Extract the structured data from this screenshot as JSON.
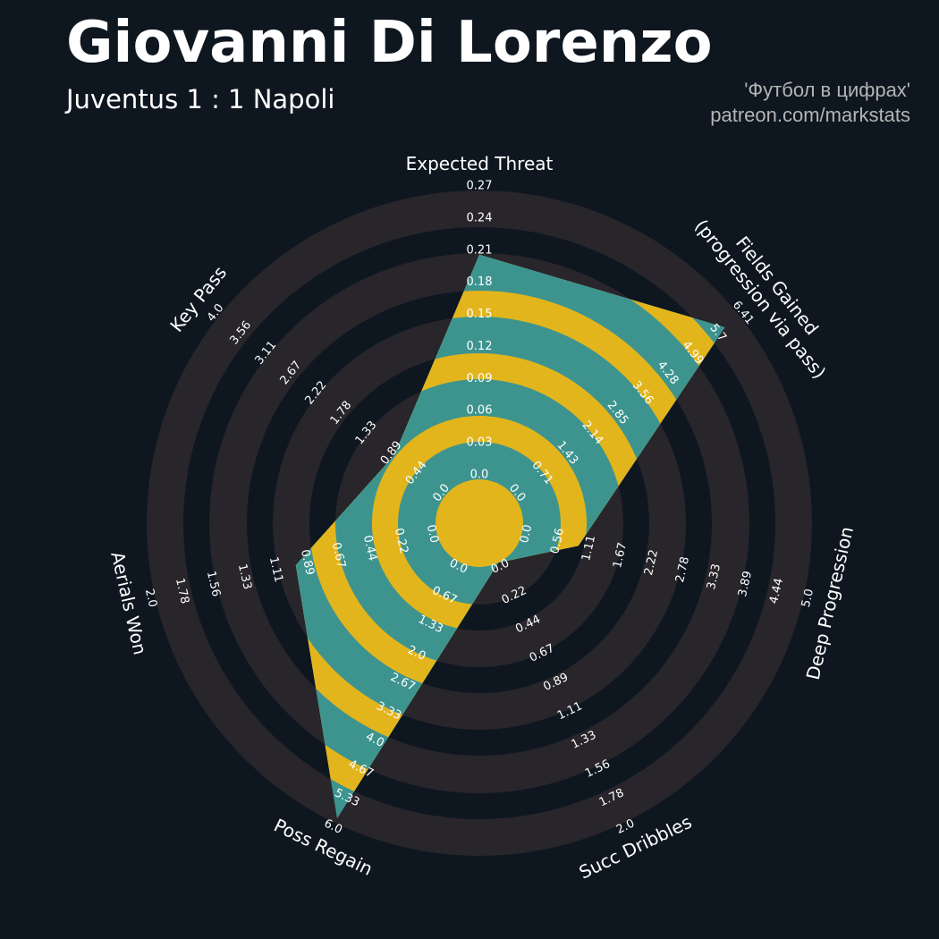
{
  "header": {
    "title": "Giovanni Di Lorenzo",
    "subtitle": "Juventus 1 : 1 Napoli",
    "credit_line1": "'Футбол в цифрах'",
    "credit_line2": "patreon.com/markstats"
  },
  "colors": {
    "background": "#0e1720",
    "rings": "#28252b",
    "polygon": "#3d948f",
    "polygon_rings": "#e3b51c",
    "text": "#ffffff"
  },
  "chart_data": {
    "type": "radar",
    "params": [
      {
        "name": "Expected Threat",
        "min": 0.0,
        "max": 0.27,
        "value": 0.21,
        "ticks": [
          "0.0",
          "0.03",
          "0.06",
          "0.09",
          "0.12",
          "0.15",
          "0.18",
          "0.21",
          "0.24",
          "0.27"
        ]
      },
      {
        "name": "Fields Gained\n(progression via pass)",
        "min": 0.0,
        "max": 6.41,
        "value": 6.0,
        "ticks": [
          "0.0",
          "0.71",
          "1.43",
          "2.14",
          "2.85",
          "3.56",
          "4.28",
          "4.99",
          "5.7",
          "6.41"
        ]
      },
      {
        "name": "Deep Progression",
        "min": 0.0,
        "max": 5.0,
        "value": 1.0,
        "ticks": [
          "0.0",
          "0.56",
          "1.11",
          "1.67",
          "2.22",
          "2.78",
          "3.33",
          "3.89",
          "4.44",
          "5.0"
        ]
      },
      {
        "name": "Succ Dribbles",
        "min": 0.0,
        "max": 2.0,
        "value": 0.0,
        "ticks": [
          "0.0",
          "0.22",
          "0.44",
          "0.67",
          "0.89",
          "1.11",
          "1.33",
          "1.56",
          "1.78",
          "2.0"
        ]
      },
      {
        "name": "Poss Regain",
        "min": 0.0,
        "max": 6.0,
        "value": 5.9,
        "ticks": [
          "0.0",
          "0.67",
          "1.33",
          "2.0",
          "2.67",
          "3.33",
          "4.0",
          "4.67",
          "5.33",
          "6.0"
        ]
      },
      {
        "name": "Aerials Won",
        "min": 0.0,
        "max": 2.0,
        "value": 1.0,
        "ticks": [
          "0.0",
          "0.22",
          "0.44",
          "0.67",
          "0.89",
          "1.11",
          "1.33",
          "1.56",
          "1.78",
          "2.0"
        ]
      },
      {
        "name": "Key Pass",
        "min": 0.0,
        "max": 4.0,
        "value": 0.9,
        "ticks": [
          "0.0",
          "0.44",
          "0.89",
          "1.33",
          "1.78",
          "2.22",
          "2.67",
          "3.11",
          "3.56",
          "4.0"
        ]
      }
    ]
  }
}
